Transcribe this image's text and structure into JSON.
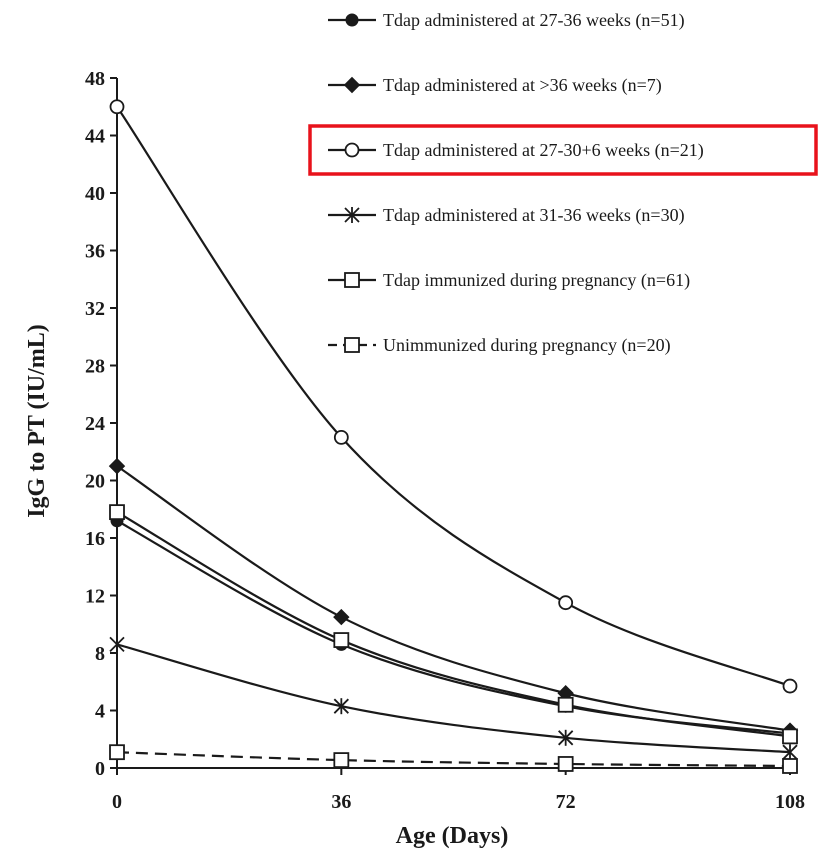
{
  "chart_data": {
    "type": "line",
    "xlabel": "Age (Days)",
    "ylabel": "IgG to PT (IU/mL)",
    "x": [
      0,
      36,
      72,
      108
    ],
    "xlim": [
      0,
      108
    ],
    "ylim": [
      0,
      48
    ],
    "xticks": [
      "0",
      "36",
      "72",
      "108"
    ],
    "yticks": [
      "0",
      "4",
      "8",
      "12",
      "16",
      "20",
      "24",
      "28",
      "32",
      "36",
      "40",
      "44",
      "48"
    ],
    "grid": false,
    "legend_position": "top-right",
    "highlighted_series_index": 2,
    "highlight_color": "#e8121b",
    "series": [
      {
        "name": "Tdap administered at  27-36 weeks (n=51)",
        "marker": "filled-circle",
        "dashed": false,
        "values": [
          17.2,
          8.6,
          4.3,
          2.4
        ]
      },
      {
        "name": "Tdap administered at >36 weeks (n=7)",
        "marker": "filled-diamond",
        "dashed": false,
        "values": [
          21.0,
          10.5,
          5.2,
          2.6
        ]
      },
      {
        "name": "Tdap administered at 27-30+6 weeks (n=21)",
        "marker": "open-circle",
        "dashed": false,
        "values": [
          46.0,
          23.0,
          11.5,
          5.7
        ]
      },
      {
        "name": "Tdap administered at  31-36  weeks (n=30)",
        "marker": "asterisk",
        "dashed": false,
        "values": [
          8.6,
          4.3,
          2.1,
          1.1
        ]
      },
      {
        "name": "Tdap immunized during pregnancy (n=61)",
        "marker": "open-square",
        "dashed": false,
        "values": [
          17.8,
          8.9,
          4.4,
          2.2
        ]
      },
      {
        "name": "Unimmunized during pregnancy (n=20)",
        "marker": "open-square",
        "dashed": true,
        "values": [
          1.1,
          0.55,
          0.28,
          0.14
        ]
      }
    ]
  }
}
